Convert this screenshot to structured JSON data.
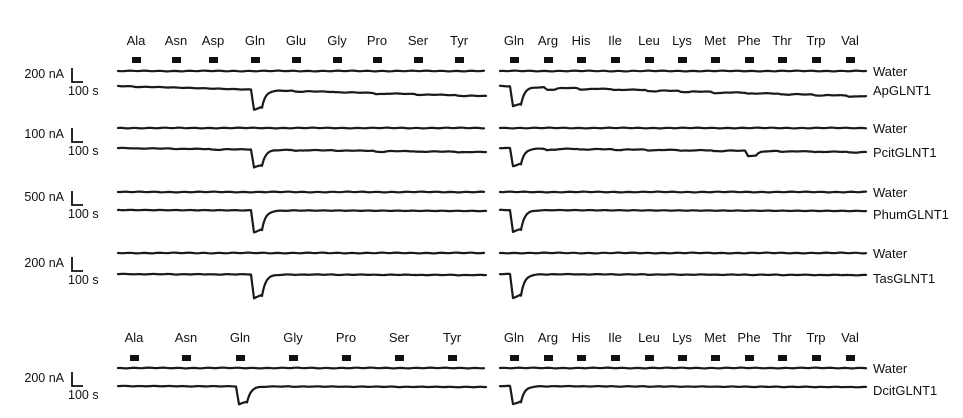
{
  "blocks": [
    {
      "id": "top",
      "left_amino_acids": [
        "Ala",
        "Asn",
        "Asp",
        "Gln",
        "Glu",
        "Gly",
        "Pro",
        "Ser",
        "Tyr"
      ],
      "right_amino_acids": [
        "Gln",
        "Arg",
        "His",
        "Ile",
        "Leu",
        "Lys",
        "Met",
        "Phe",
        "Thr",
        "Trp",
        "Val"
      ],
      "rows": [
        {
          "current_scale": "200 nA",
          "time_scale": "100 s",
          "water_label": "Water",
          "sample_label": "ApGLNT1",
          "left_responses": [
            0.02,
            0,
            0,
            1,
            0.04,
            0.02,
            0.05,
            0.03,
            0.03
          ],
          "right_responses": [
            1,
            0.12,
            0.06,
            0.04,
            0.06,
            0.05,
            0.06,
            0.04,
            0.04,
            0.04,
            0.05
          ]
        },
        {
          "current_scale": "100 nA",
          "time_scale": "100 s",
          "water_label": "Water",
          "sample_label": "PcitGLNT1",
          "left_responses": [
            0.02,
            0.02,
            0.04,
            1,
            0.04,
            0.02,
            0.06,
            0.03,
            0.03
          ],
          "right_responses": [
            1,
            0.08,
            0.04,
            0.04,
            0.04,
            0.04,
            0.05,
            0.3,
            0.03,
            0.03,
            0.04
          ]
        },
        {
          "current_scale": "500 nA",
          "time_scale": "100 s",
          "water_label": "Water",
          "sample_label": "PhumGLNT1",
          "left_responses": [
            0,
            0,
            0,
            1,
            0,
            0,
            0,
            0,
            0
          ],
          "right_responses": [
            1,
            0,
            0,
            0,
            0,
            0,
            0,
            0,
            0,
            0,
            0
          ]
        },
        {
          "current_scale": "200 nA",
          "time_scale": "100 s",
          "water_label": "Water",
          "sample_label": "TasGLNT1",
          "left_responses": [
            0.01,
            0.01,
            0.01,
            1,
            0.01,
            0.01,
            0.01,
            0.01,
            0.01
          ],
          "right_responses": [
            1,
            0.01,
            0.01,
            0.01,
            0.01,
            0.01,
            0.01,
            0.01,
            0.01,
            0.01,
            0.01
          ]
        }
      ]
    },
    {
      "id": "bottom",
      "left_amino_acids": [
        "Ala",
        "Asn",
        "Gln",
        "Gly",
        "Pro",
        "Ser",
        "Tyr"
      ],
      "right_amino_acids": [
        "Gln",
        "Arg",
        "His",
        "Ile",
        "Leu",
        "Lys",
        "Met",
        "Phe",
        "Thr",
        "Trp",
        "Val"
      ],
      "rows": [
        {
          "current_scale": "200 nA",
          "time_scale": "100 s",
          "water_label": "Water",
          "sample_label": "DcitGLNT1",
          "left_responses": [
            0.01,
            0.01,
            1,
            0.01,
            0.01,
            0.01,
            0.01
          ],
          "right_responses": [
            1,
            0.01,
            0.01,
            0.01,
            0.01,
            0.01,
            0.01,
            0.01,
            0.01,
            0.01,
            0.01
          ]
        }
      ]
    }
  ]
}
